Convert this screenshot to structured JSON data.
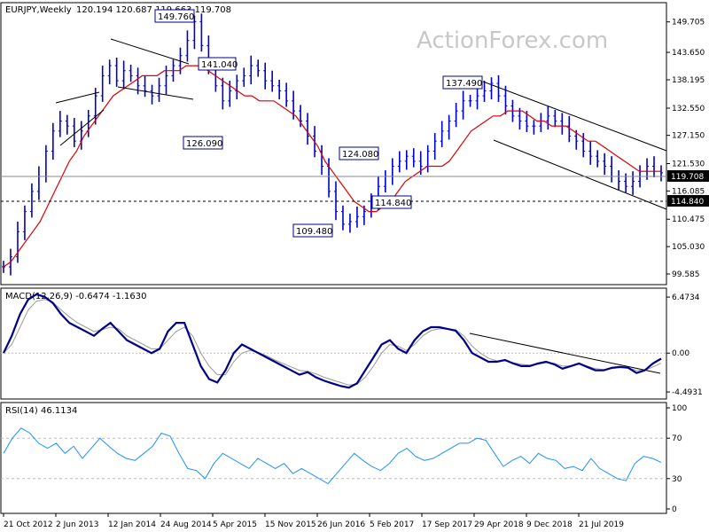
{
  "header": {
    "symbol": "EURJPY,Weekly",
    "ohlc": "120.194 120.687 119.663 119.708"
  },
  "watermark": "ActionForex.com",
  "colors": {
    "price": "#0000cc",
    "sma": "#e00000",
    "macd": "#00008b",
    "signal": "#9a9a9a",
    "rsi": "#1e90ff",
    "trend": "#000000",
    "box_border": "#00008b"
  },
  "chart_data": [
    {
      "type": "line",
      "panel": "price",
      "title": "EURJPY,Weekly",
      "ylim": [
        98.0,
        153.0
      ],
      "yticks": [
        "149.705",
        "143.650",
        "138.195",
        "132.550",
        "127.150",
        "121.530",
        "116.085",
        "110.475",
        "105.030",
        "99.585"
      ],
      "current_value_label": "119.708",
      "support_value_label": "114.840",
      "x_labels": [
        "21 Oct 2012",
        "2 Jun 2013",
        "12 Jan 2014",
        "24 Aug 2014",
        "5 Apr 2015",
        "15 Nov 2015",
        "26 Jun 2016",
        "5 Feb 2017",
        "17 Sep 2017",
        "29 Apr 2018",
        "9 Dec 2018",
        "21 Jul 2019"
      ],
      "series": [
        {
          "values": [
            101,
            103,
            108,
            112,
            116,
            119,
            124,
            128,
            130,
            129,
            126,
            128,
            131,
            135,
            139,
            141,
            138,
            140,
            139,
            137,
            136,
            135,
            137,
            139,
            141,
            143,
            146,
            149.76,
            145,
            141,
            137,
            134,
            136,
            138,
            139,
            141,
            140,
            138,
            137,
            136,
            134,
            132,
            130,
            127,
            124,
            121,
            116,
            112,
            109.48,
            110,
            111,
            112,
            114,
            117,
            119,
            121,
            122,
            123,
            122,
            121,
            124,
            126,
            128,
            130,
            132,
            134,
            134,
            135,
            136,
            137.49,
            135,
            133,
            131,
            130,
            129,
            129,
            130,
            131,
            130,
            129,
            127,
            126,
            124,
            123,
            122,
            121,
            119,
            118,
            117,
            118,
            120,
            121,
            120,
            119.708
          ]
        },
        {
          "values": [
            101,
            102,
            104,
            106,
            108,
            110,
            113,
            116,
            119,
            122,
            124,
            127,
            129,
            131,
            133,
            135,
            136,
            137,
            138,
            139,
            139,
            139,
            140,
            140,
            140,
            141,
            141,
            141,
            140,
            139,
            138,
            137,
            136,
            135,
            135,
            134,
            134,
            134,
            133,
            132,
            131,
            129,
            127,
            125,
            122,
            120,
            118,
            116,
            114,
            113,
            112,
            112,
            113,
            114,
            116,
            118,
            119,
            120,
            121,
            121,
            121,
            122,
            124,
            126,
            128,
            129,
            130,
            131,
            131,
            132,
            132,
            132,
            131,
            130,
            130,
            129,
            129,
            129,
            128,
            127,
            126,
            126,
            125,
            124,
            123,
            122,
            121,
            120,
            120,
            120,
            120
          ]
        }
      ],
      "annotations": [
        "149.760",
        "141.040",
        "126.090",
        "124.080",
        "114.840",
        "109.480",
        "137.490"
      ]
    },
    {
      "type": "line",
      "panel": "macd",
      "title": "MACD(12,26,9) -0.6474 -1.1630",
      "ylim": [
        -5.0,
        7.2
      ],
      "yticks": [
        "6.4734",
        "0.00",
        "-4.4931"
      ],
      "series": [
        {
          "values": [
            0,
            2,
            4.5,
            6.2,
            6.8,
            6.5,
            5.8,
            4.5,
            3.5,
            3,
            2.5,
            2,
            2.8,
            3.5,
            2.5,
            1.5,
            1,
            0.5,
            0,
            0.5,
            2.5,
            3.5,
            3.5,
            1,
            -1.5,
            -3,
            -3.4,
            -2,
            0,
            1,
            0.5,
            0,
            -0.5,
            -1,
            -1.5,
            -2,
            -2.5,
            -2.2,
            -2.8,
            -3.2,
            -3.5,
            -3.8,
            -4,
            -3.5,
            -2,
            -0.5,
            1,
            1.5,
            0.5,
            0,
            1.5,
            2.5,
            3,
            3,
            2.8,
            2.6,
            1.5,
            0,
            -0.5,
            -1,
            -1,
            -0.8,
            -1.2,
            -1.5,
            -1.5,
            -1.2,
            -1,
            -1.3,
            -1.8,
            -1.5,
            -1.2,
            -1.6,
            -2,
            -2,
            -1.7,
            -1.6,
            -1.7,
            -2.3,
            -2,
            -1.2,
            -0.6474
          ]
        },
        {
          "values": [
            0,
            1,
            3,
            5,
            6,
            6.2,
            5.9,
            5,
            4.2,
            3.5,
            3,
            2.5,
            2.7,
            3,
            2.8,
            2,
            1.5,
            1,
            0.5,
            0.5,
            1.5,
            2.5,
            3,
            2,
            0,
            -1.5,
            -2.5,
            -2.5,
            -1,
            0,
            0.3,
            0.1,
            -0.3,
            -0.8,
            -1.2,
            -1.6,
            -2,
            -2.1,
            -2.4,
            -2.8,
            -3.1,
            -3.4,
            -3.7,
            -3.6,
            -2.8,
            -1.5,
            0,
            1,
            0.8,
            0.3,
            1,
            2,
            2.6,
            2.8,
            2.8,
            2.7,
            2,
            0.8,
            0,
            -0.6,
            -0.9,
            -0.9,
            -1.1,
            -1.3,
            -1.4,
            -1.3,
            -1.1,
            -1.2,
            -1.5,
            -1.5,
            -1.3,
            -1.5,
            -1.8,
            -1.9,
            -1.8,
            -1.7,
            -1.7,
            -2,
            -2,
            -1.6,
            -1.163
          ]
        }
      ]
    },
    {
      "type": "line",
      "panel": "rsi",
      "title": "RSI(14) 46.1134",
      "ylim": [
        0,
        100
      ],
      "yticks": [
        "100",
        "70",
        "30",
        "0"
      ],
      "series": [
        {
          "values": [
            55,
            70,
            80,
            75,
            65,
            60,
            65,
            55,
            62,
            50,
            60,
            70,
            62,
            55,
            50,
            48,
            55,
            62,
            75,
            72,
            55,
            40,
            38,
            30,
            45,
            55,
            50,
            45,
            40,
            50,
            45,
            40,
            45,
            35,
            40,
            35,
            30,
            25,
            35,
            45,
            55,
            48,
            42,
            38,
            45,
            55,
            60,
            52,
            48,
            50,
            55,
            60,
            65,
            65,
            70,
            68,
            55,
            42,
            48,
            52,
            45,
            55,
            50,
            48,
            40,
            42,
            38,
            50,
            40,
            35,
            30,
            28,
            45,
            52,
            50,
            46.1134
          ]
        }
      ]
    }
  ]
}
